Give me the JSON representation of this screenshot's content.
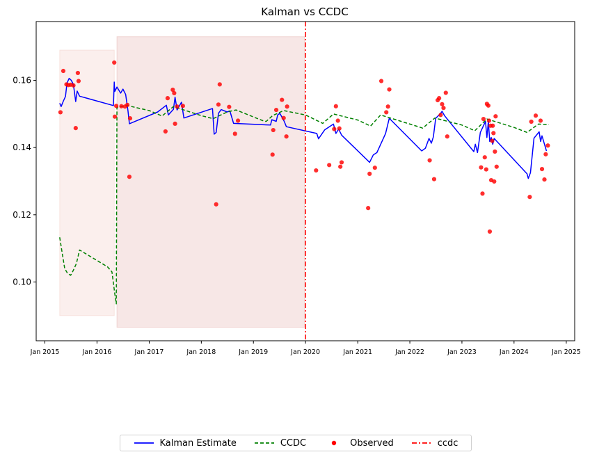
{
  "chart_data": {
    "type": "line",
    "title": "Kalman vs CCDC",
    "xlabel": "",
    "ylabel": "",
    "xlim": [
      "2014-11-01",
      "2025-03-01"
    ],
    "ylim": [
      0.0825,
      0.1775
    ],
    "x_ticks": [
      "Jan 2015",
      "Jan 2016",
      "Jan 2017",
      "Jan 2018",
      "Jan 2019",
      "Jan 2020",
      "Jan 2021",
      "Jan 2022",
      "Jan 2023",
      "Jan 2024",
      "Jan 2025"
    ],
    "x_tick_dates": [
      "2015-01-01",
      "2016-01-01",
      "2017-01-01",
      "2018-01-01",
      "2019-01-01",
      "2020-01-01",
      "2021-01-01",
      "2022-01-01",
      "2023-01-01",
      "2024-01-01",
      "2025-01-01"
    ],
    "y_ticks": [
      0.1,
      0.12,
      0.14,
      0.16
    ],
    "y_tick_labels": [
      "0.10",
      "0.12",
      "0.14",
      "0.16"
    ],
    "grid": false,
    "legend_position": "bottom-center",
    "shaded_regions": [
      {
        "start": "2015-04-15",
        "end": "2016-05-01",
        "y_low": 0.09,
        "y_high": 0.169,
        "color": "#f5d5cf"
      },
      {
        "start": "2016-05-20",
        "end": "2019-12-25",
        "y_low": 0.0865,
        "y_high": 0.173,
        "color": "#ebbfbc"
      }
    ],
    "series": [
      {
        "name": "Kalman Estimate",
        "style": "solid",
        "color": "#0000ff",
        "points": [
          [
            "2015-04-15",
            0.1532
          ],
          [
            "2015-04-25",
            0.1522
          ],
          [
            "2015-05-10",
            0.1538
          ],
          [
            "2015-05-25",
            0.1552
          ],
          [
            "2015-06-05",
            0.1592
          ],
          [
            "2015-06-20",
            0.1606
          ],
          [
            "2015-07-05",
            0.16
          ],
          [
            "2015-07-20",
            0.1588
          ],
          [
            "2015-08-05",
            0.1537
          ],
          [
            "2015-08-15",
            0.1568
          ],
          [
            "2015-09-01",
            0.1553
          ],
          [
            "2016-04-25",
            0.1525
          ],
          [
            "2016-05-01",
            0.1595
          ],
          [
            "2016-05-05",
            0.1567
          ],
          [
            "2016-05-20",
            0.158
          ],
          [
            "2016-06-15",
            0.1562
          ],
          [
            "2016-07-01",
            0.1574
          ],
          [
            "2016-07-20",
            0.1558
          ],
          [
            "2016-08-05",
            0.151
          ],
          [
            "2016-08-15",
            0.1471
          ],
          [
            "2017-03-01",
            0.1506
          ],
          [
            "2017-05-01",
            0.1526
          ],
          [
            "2017-05-15",
            0.1497
          ],
          [
            "2017-06-20",
            0.1514
          ],
          [
            "2017-07-01",
            0.155
          ],
          [
            "2017-07-15",
            0.1512
          ],
          [
            "2017-08-15",
            0.1535
          ],
          [
            "2017-09-01",
            0.1488
          ],
          [
            "2018-03-20",
            0.1516
          ],
          [
            "2018-04-01",
            0.144
          ],
          [
            "2018-04-15",
            0.1445
          ],
          [
            "2018-05-01",
            0.1502
          ],
          [
            "2018-05-20",
            0.1513
          ],
          [
            "2018-07-01",
            0.1506
          ],
          [
            "2018-07-20",
            0.1509
          ],
          [
            "2018-08-15",
            0.1472
          ],
          [
            "2019-05-01",
            0.1467
          ],
          [
            "2019-05-10",
            0.1483
          ],
          [
            "2019-06-10",
            0.1478
          ],
          [
            "2019-06-20",
            0.1497
          ],
          [
            "2019-07-05",
            0.1502
          ],
          [
            "2019-08-05",
            0.1478
          ],
          [
            "2019-08-20",
            0.1462
          ],
          [
            "2020-03-20",
            0.1442
          ],
          [
            "2020-04-01",
            0.1426
          ],
          [
            "2020-05-15",
            0.1453
          ],
          [
            "2020-07-15",
            0.147
          ],
          [
            "2020-08-01",
            0.1442
          ],
          [
            "2020-08-20",
            0.1455
          ],
          [
            "2020-09-10",
            0.1437
          ],
          [
            "2021-03-25",
            0.1356
          ],
          [
            "2021-04-20",
            0.1378
          ],
          [
            "2021-05-15",
            0.1385
          ],
          [
            "2021-07-15",
            0.1442
          ],
          [
            "2021-08-10",
            0.1487
          ],
          [
            "2022-03-25",
            0.139
          ],
          [
            "2022-04-20",
            0.1398
          ],
          [
            "2022-05-15",
            0.1427
          ],
          [
            "2022-06-01",
            0.1413
          ],
          [
            "2022-06-15",
            0.1432
          ],
          [
            "2022-07-01",
            0.1487
          ],
          [
            "2022-08-01",
            0.15
          ],
          [
            "2022-08-15",
            0.1508
          ],
          [
            "2022-09-01",
            0.1495
          ],
          [
            "2023-03-25",
            0.1388
          ],
          [
            "2023-04-05",
            0.141
          ],
          [
            "2023-04-20",
            0.1385
          ],
          [
            "2023-05-10",
            0.1445
          ],
          [
            "2023-06-15",
            0.1478
          ],
          [
            "2023-06-25",
            0.143
          ],
          [
            "2023-07-05",
            0.1478
          ],
          [
            "2023-07-15",
            0.1418
          ],
          [
            "2023-07-25",
            0.143
          ],
          [
            "2023-08-05",
            0.141
          ],
          [
            "2023-08-15",
            0.1427
          ],
          [
            "2024-04-01",
            0.1322
          ],
          [
            "2024-04-10",
            0.1308
          ],
          [
            "2024-04-25",
            0.1325
          ],
          [
            "2024-05-20",
            0.1428
          ],
          [
            "2024-06-25",
            0.1447
          ],
          [
            "2024-07-05",
            0.1418
          ],
          [
            "2024-07-15",
            0.1435
          ],
          [
            "2024-08-15",
            0.139
          ]
        ]
      },
      {
        "name": "CCDC",
        "style": "dashed",
        "color": "#008000",
        "points": [
          [
            "2015-04-15",
            0.1133
          ],
          [
            "2015-05-01",
            0.109
          ],
          [
            "2015-05-20",
            0.104
          ],
          [
            "2015-06-10",
            0.1025
          ],
          [
            "2015-07-01",
            0.102
          ],
          [
            "2015-07-20",
            0.1035
          ],
          [
            "2015-08-10",
            0.1055
          ],
          [
            "2015-09-01",
            0.1095
          ],
          [
            "2016-03-15",
            0.1045
          ],
          [
            "2016-04-15",
            0.103
          ],
          [
            "2016-05-05",
            0.0965
          ],
          [
            "2016-05-15",
            0.0935
          ],
          [
            "2016-05-20",
            0.152
          ],
          [
            "2016-08-01",
            0.1525
          ],
          [
            "2017-01-01",
            0.151
          ],
          [
            "2017-04-01",
            0.1494
          ],
          [
            "2017-06-20",
            0.1522
          ],
          [
            "2018-01-01",
            0.1495
          ],
          [
            "2018-03-25",
            0.1486
          ],
          [
            "2018-07-01",
            0.1506
          ],
          [
            "2018-09-01",
            0.1512
          ],
          [
            "2019-03-20",
            0.1478
          ],
          [
            "2019-04-01",
            0.1478
          ],
          [
            "2019-05-15",
            0.1495
          ],
          [
            "2019-08-01",
            0.151
          ],
          [
            "2020-01-01",
            0.1497
          ],
          [
            "2020-05-01",
            0.1472
          ],
          [
            "2020-07-15",
            0.15
          ],
          [
            "2021-01-01",
            0.1482
          ],
          [
            "2021-04-01",
            0.1464
          ],
          [
            "2021-06-10",
            0.1497
          ],
          [
            "2022-01-01",
            0.147
          ],
          [
            "2022-04-01",
            0.1458
          ],
          [
            "2022-06-25",
            0.1488
          ],
          [
            "2023-01-01",
            0.1467
          ],
          [
            "2023-04-01",
            0.145
          ],
          [
            "2023-06-25",
            0.1485
          ],
          [
            "2024-01-01",
            0.146
          ],
          [
            "2024-04-01",
            0.1445
          ],
          [
            "2024-06-20",
            0.147
          ],
          [
            "2024-09-01",
            0.1468
          ]
        ]
      },
      {
        "name": "Observed",
        "style": "markers",
        "color": "#ff0000",
        "points": [
          [
            "2015-04-20",
            0.1505
          ],
          [
            "2015-05-10",
            0.1628
          ],
          [
            "2015-06-01",
            0.1588
          ],
          [
            "2015-06-15",
            0.1586
          ],
          [
            "2015-07-01",
            0.1587
          ],
          [
            "2015-07-20",
            0.1585
          ],
          [
            "2015-08-05",
            0.1458
          ],
          [
            "2015-08-20",
            0.1622
          ],
          [
            "2015-08-25",
            0.1598
          ],
          [
            "2016-05-01",
            0.1653
          ],
          [
            "2016-05-05",
            0.1492
          ],
          [
            "2016-05-15",
            0.1524
          ],
          [
            "2016-06-20",
            0.1523
          ],
          [
            "2016-07-15",
            0.1522
          ],
          [
            "2016-08-01",
            0.1527
          ],
          [
            "2016-08-15",
            0.1313
          ],
          [
            "2016-08-20",
            0.1487
          ],
          [
            "2017-04-25",
            0.1448
          ],
          [
            "2017-05-10",
            0.1547
          ],
          [
            "2017-06-15",
            0.1572
          ],
          [
            "2017-06-25",
            0.1562
          ],
          [
            "2017-07-01",
            0.1471
          ],
          [
            "2017-07-15",
            0.1522
          ],
          [
            "2017-08-25",
            0.1524
          ],
          [
            "2018-04-15",
            0.1231
          ],
          [
            "2018-05-01",
            0.1528
          ],
          [
            "2018-05-10",
            0.1588
          ],
          [
            "2018-07-15",
            0.1521
          ],
          [
            "2018-08-25",
            0.1441
          ],
          [
            "2018-09-15",
            0.148
          ],
          [
            "2019-05-15",
            0.1379
          ],
          [
            "2019-05-20",
            0.1452
          ],
          [
            "2019-06-10",
            0.1512
          ],
          [
            "2019-07-20",
            0.1542
          ],
          [
            "2019-08-01",
            0.1488
          ],
          [
            "2019-08-20",
            0.1433
          ],
          [
            "2019-08-25",
            0.1522
          ],
          [
            "2020-03-15",
            0.1332
          ],
          [
            "2020-06-15",
            0.1348
          ],
          [
            "2020-07-20",
            0.1455
          ],
          [
            "2020-08-01",
            0.1523
          ],
          [
            "2020-08-15",
            0.148
          ],
          [
            "2020-08-25",
            0.1457
          ],
          [
            "2020-09-01",
            0.1343
          ],
          [
            "2020-09-10",
            0.1356
          ],
          [
            "2021-03-15",
            0.122
          ],
          [
            "2021-03-25",
            0.1322
          ],
          [
            "2021-05-01",
            0.134
          ],
          [
            "2021-06-15",
            0.1598
          ],
          [
            "2021-07-20",
            0.1505
          ],
          [
            "2021-08-01",
            0.1522
          ],
          [
            "2021-08-10",
            0.1573
          ],
          [
            "2022-05-20",
            0.1362
          ],
          [
            "2022-06-20",
            0.1306
          ],
          [
            "2022-07-15",
            0.1541
          ],
          [
            "2022-07-25",
            0.1547
          ],
          [
            "2022-08-05",
            0.1497
          ],
          [
            "2022-08-15",
            0.1529
          ],
          [
            "2022-08-25",
            0.1518
          ],
          [
            "2022-09-10",
            0.1563
          ],
          [
            "2022-09-20",
            0.1433
          ],
          [
            "2023-05-15",
            0.1341
          ],
          [
            "2023-05-25",
            0.1263
          ],
          [
            "2023-06-01",
            0.1485
          ],
          [
            "2023-06-10",
            0.1371
          ],
          [
            "2023-06-20",
            0.1335
          ],
          [
            "2023-06-25",
            0.153
          ],
          [
            "2023-07-05",
            0.1525
          ],
          [
            "2023-07-10",
            0.148
          ],
          [
            "2023-07-15",
            0.115
          ],
          [
            "2023-07-20",
            0.1465
          ],
          [
            "2023-07-25",
            0.1303
          ],
          [
            "2023-08-01",
            0.142
          ],
          [
            "2023-08-05",
            0.1465
          ],
          [
            "2023-08-10",
            0.1443
          ],
          [
            "2023-08-15",
            0.1299
          ],
          [
            "2023-08-20",
            0.1388
          ],
          [
            "2023-08-25",
            0.1493
          ],
          [
            "2023-09-01",
            0.1343
          ],
          [
            "2024-04-20",
            0.1253
          ],
          [
            "2024-05-01",
            0.1477
          ],
          [
            "2024-06-01",
            0.1495
          ],
          [
            "2024-07-05",
            0.148
          ],
          [
            "2024-07-15",
            0.1336
          ],
          [
            "2024-08-01",
            0.1305
          ],
          [
            "2024-08-10",
            0.138
          ],
          [
            "2024-08-25",
            0.1406
          ]
        ]
      }
    ],
    "vertical_lines": [
      {
        "name": "ccdc",
        "x": "2020-01-01",
        "style": "dashdot",
        "color": "#ff0000"
      }
    ]
  },
  "legend": {
    "items": [
      {
        "label": "Kalman Estimate"
      },
      {
        "label": "CCDC"
      },
      {
        "label": "Observed"
      },
      {
        "label": "ccdc"
      }
    ]
  }
}
